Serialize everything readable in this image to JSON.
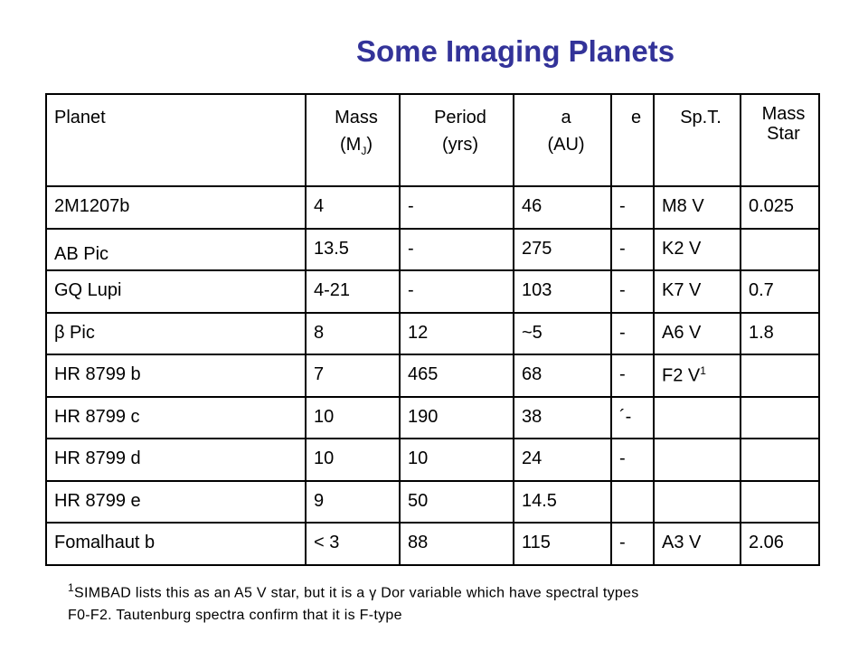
{
  "title": "Some Imaging Planets",
  "table": {
    "header": [
      {
        "lines": [
          "Planet"
        ]
      },
      {
        "lines": [
          "Mass"
        ],
        "unit": "(M",
        "unit_sub": "J",
        "unit_end": ")"
      },
      {
        "lines": [
          "Period",
          "(yrs)"
        ]
      },
      {
        "lines": [
          "a",
          "(AU)"
        ]
      },
      {
        "lines": [
          "e"
        ]
      },
      {
        "lines": [
          "Sp.T."
        ]
      },
      {
        "lines": [
          "Mass",
          "Star"
        ]
      }
    ],
    "rows": [
      [
        "2M1207b",
        "4",
        "-",
        "46",
        "-",
        "M8 V",
        "0.025"
      ],
      [
        "AB Pic",
        "13.5",
        "-",
        "275",
        "-",
        "K2 V",
        null
      ],
      [
        "GQ Lupi",
        "4-21",
        "-",
        "103",
        "-",
        "K7 V",
        "0.7"
      ],
      [
        "β Pic",
        "8",
        "12",
        "~5",
        "-",
        "A6 V",
        "1.8"
      ],
      [
        "HR 8799 b",
        "7",
        "465",
        "68",
        "-",
        {
          "text": "F2 V",
          "sup": "1"
        },
        null
      ],
      [
        "HR 8799 c",
        "10",
        "190",
        "38",
        "´-",
        null,
        null
      ],
      [
        "HR 8799 d",
        "10",
        "10",
        "24",
        "-",
        null,
        null
      ],
      [
        "HR 8799 e",
        "9",
        "50",
        "14.5",
        null,
        null,
        null
      ],
      [
        "Fomalhaut b",
        "< 3",
        "88",
        "115",
        "-",
        "A3 V",
        "2.06"
      ]
    ]
  },
  "footnote": {
    "mark": "1",
    "line1": "SIMBAD  lists this as an A5 V star, but it is a γ Dor variable which have spectral types",
    "line2": "F0-F2. Tautenburg spectra confirm that it is F-type"
  }
}
